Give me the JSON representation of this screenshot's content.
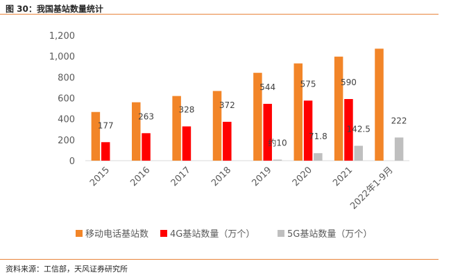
{
  "figure_title": "图 30：我国基站数量统计",
  "source_note": "资料来源：工信部，天风证券研究所",
  "colors": {
    "mobile": "#f28528",
    "g4": "#ff0000",
    "g5": "#bfbfbf",
    "rule": "#e8833a"
  },
  "chart_data": {
    "type": "bar",
    "title": "",
    "xlabel": "",
    "ylabel": "",
    "ylim": [
      0,
      1200
    ],
    "yticks": [
      "0",
      "200",
      "400",
      "600",
      "800",
      "1,000",
      "1,200"
    ],
    "ytick_values": [
      0,
      200,
      400,
      600,
      800,
      1000,
      1200
    ],
    "grid": false,
    "legend_position": "bottom",
    "categories": [
      "2015",
      "2016",
      "2017",
      "2018",
      "2019",
      "2020",
      "2021",
      "2022年1-9月"
    ],
    "series": [
      {
        "name": "移动电话基站数",
        "color": "#f28528",
        "values": [
          466,
          559,
          619,
          667,
          841,
          931,
          996,
          1072
        ],
        "labels": [
          "",
          "",
          "",
          "",
          "",
          "",
          "",
          ""
        ]
      },
      {
        "name": "4G基站数量（万个）",
        "color": "#ff0000",
        "values": [
          177,
          263,
          328,
          372,
          544,
          575,
          590,
          null
        ],
        "labels": [
          "177",
          "263",
          "328",
          "372",
          "544",
          "575",
          "590",
          ""
        ]
      },
      {
        "name": "5G基站数量（万个）",
        "color": "#bfbfbf",
        "values": [
          null,
          null,
          null,
          null,
          10,
          71.8,
          142.5,
          222
        ],
        "labels": [
          "",
          "",
          "",
          "",
          "约10",
          "71.8",
          "142.5",
          "222"
        ]
      }
    ]
  }
}
